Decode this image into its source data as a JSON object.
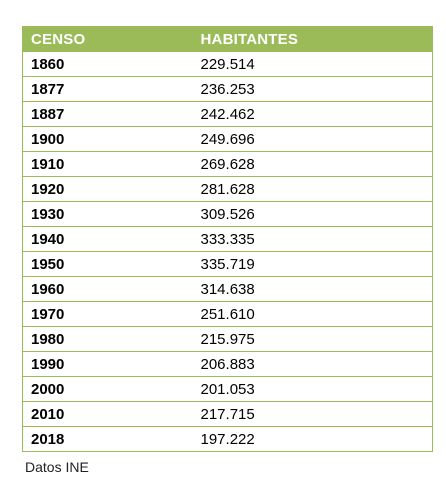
{
  "table": {
    "headers": [
      "CENSO",
      "HABITANTES"
    ],
    "rows": [
      [
        "1860",
        "229.514"
      ],
      [
        "1877",
        "236.253"
      ],
      [
        "1887",
        "242.462"
      ],
      [
        "1900",
        "249.696"
      ],
      [
        "1910",
        "269.628"
      ],
      [
        "1920",
        "281.628"
      ],
      [
        "1930",
        "309.526"
      ],
      [
        "1940",
        "333.335"
      ],
      [
        "1950",
        "335.719"
      ],
      [
        "1960",
        "314.638"
      ],
      [
        "1970",
        "251.610"
      ],
      [
        "1980",
        "215.975"
      ],
      [
        "1990",
        "206.883"
      ],
      [
        "2000",
        "201.053"
      ],
      [
        "2010",
        "217.715"
      ],
      [
        "2018",
        "197.222"
      ]
    ]
  },
  "source": "Datos INE",
  "colors": {
    "header_bg": "#9bbb59",
    "header_text": "#ffffff",
    "border": "#9bbb59"
  }
}
